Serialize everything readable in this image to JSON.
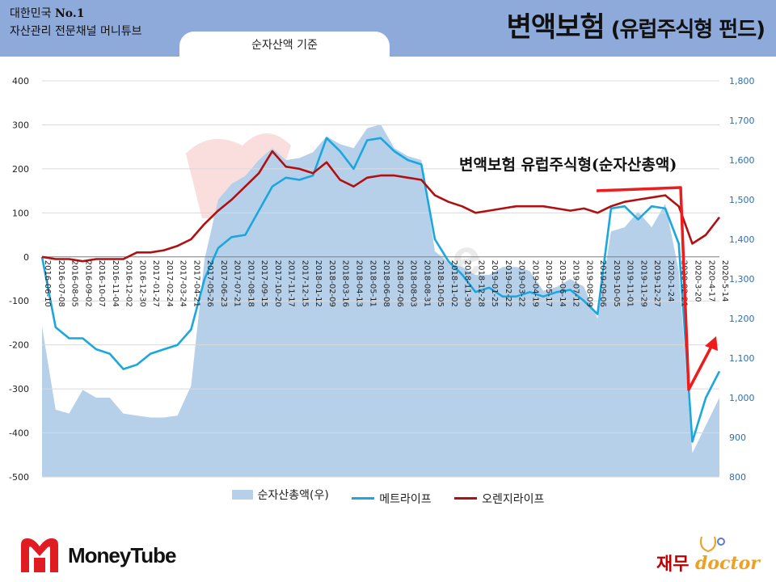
{
  "header": {
    "brand_line1_prefix": "대한민국 ",
    "brand_line1_bold": "No.1",
    "brand_line2": "자산관리 전문채널 머니튜브",
    "title_main": "변액보험",
    "title_sub": " (유럽주식형 펀드)",
    "basis": "순자산액 기준"
  },
  "logos": {
    "left_text": "MoneyTube",
    "right_korean": "재무",
    "right_english": "doctor",
    "watermark": "MoneyTube"
  },
  "colors": {
    "header_bg": "#8eaadb",
    "area": "#b6d0ea",
    "metlife": "#1aa7e0",
    "orange": "#b01010",
    "right_axis": "#2a6fb3",
    "annotation_arrow": "#ee1c1c"
  },
  "chart_data": {
    "type": "line",
    "annotation": "변액보험 유럽주식형(순자산총액)",
    "y_left": {
      "min": -500,
      "max": 400,
      "ticks": [
        400,
        300,
        200,
        100,
        0,
        -100,
        -200,
        -300,
        -400,
        -500
      ]
    },
    "y_right": {
      "min": 800,
      "max": 1800,
      "ticks": [
        "1,800",
        "1,700",
        "1,600",
        "1,500",
        "1,400",
        "1,300",
        "1,200",
        "1,100",
        "1,000",
        "900",
        "800"
      ]
    },
    "x_labels": [
      "2016-06-10",
      "2016-07-08",
      "2016-08-05",
      "2016-09-02",
      "2016-10-07",
      "2016-11-04",
      "2016-12-02",
      "2016-12-30",
      "2017-01-27",
      "2017-02-24",
      "2017-03-24",
      "2017-04-21",
      "2017-05-26",
      "2017-06-23",
      "2017-07-21",
      "2017-08-18",
      "2017-09-15",
      "2017-10-20",
      "2017-11-17",
      "2017-12-15",
      "2018-01-12",
      "2018-02-09",
      "2018-03-16",
      "2018-04-13",
      "2018-05-11",
      "2018-06-08",
      "2018-07-06",
      "2018-08-03",
      "2018-08-31",
      "2018-10-05",
      "2018-11-02",
      "2018-11-30",
      "2018-12-28",
      "2019-01-25",
      "2019-02-22",
      "2019-03-22",
      "2019-04-19",
      "2019-05-17",
      "2019-06-14",
      "2019-07-12",
      "2019-08-09",
      "2019-09-06",
      "2019-10-05",
      "2019-11-01",
      "2019-11-29",
      "2019-12-27",
      "2020-1-24",
      "2020-02-21",
      "2020-3-20",
      "2020-4-17",
      "2020-5-14"
    ],
    "series": [
      {
        "name": "순자산총액(우)",
        "axis": "right",
        "kind": "area",
        "values": [
          1180,
          970,
          960,
          1020,
          1000,
          1000,
          960,
          955,
          950,
          950,
          955,
          1030,
          1350,
          1500,
          1540,
          1560,
          1600,
          1630,
          1600,
          1605,
          1620,
          1660,
          1640,
          1630,
          1680,
          1690,
          1630,
          1610,
          1600,
          1370,
          1340,
          1330,
          1310,
          1310,
          1330,
          1330,
          1320,
          1270,
          1280,
          1300,
          1280,
          1200,
          1420,
          1430,
          1470,
          1430,
          1490,
          1320,
          860,
          930,
          1000
        ]
      },
      {
        "name": "메트라이프",
        "axis": "left",
        "kind": "line",
        "values": [
          0,
          -160,
          -185,
          -185,
          -210,
          -220,
          -255,
          -245,
          -220,
          -210,
          -200,
          -165,
          -50,
          20,
          45,
          50,
          105,
          160,
          180,
          175,
          185,
          270,
          240,
          200,
          265,
          270,
          240,
          220,
          210,
          40,
          -10,
          -40,
          -80,
          -70,
          -90,
          -90,
          -80,
          -90,
          -80,
          -75,
          -100,
          -130,
          110,
          115,
          85,
          115,
          110,
          30,
          -420,
          -320,
          -260
        ]
      },
      {
        "name": "오렌지라이프",
        "axis": "left",
        "kind": "line",
        "values": [
          0,
          -5,
          -5,
          -10,
          -5,
          -5,
          -5,
          10,
          10,
          15,
          25,
          40,
          75,
          105,
          130,
          160,
          190,
          240,
          205,
          200,
          190,
          215,
          175,
          160,
          180,
          185,
          185,
          180,
          175,
          140,
          125,
          115,
          100,
          105,
          110,
          115,
          115,
          115,
          110,
          105,
          110,
          100,
          115,
          125,
          130,
          135,
          140,
          115,
          30,
          50,
          90
        ]
      }
    ]
  },
  "legend": [
    {
      "label": "순자산총액(우)",
      "kind": "area"
    },
    {
      "label": "메트라이프",
      "kind": "line",
      "color": "#1aa7e0"
    },
    {
      "label": "오렌지라이프",
      "kind": "line",
      "color": "#b01010"
    }
  ]
}
